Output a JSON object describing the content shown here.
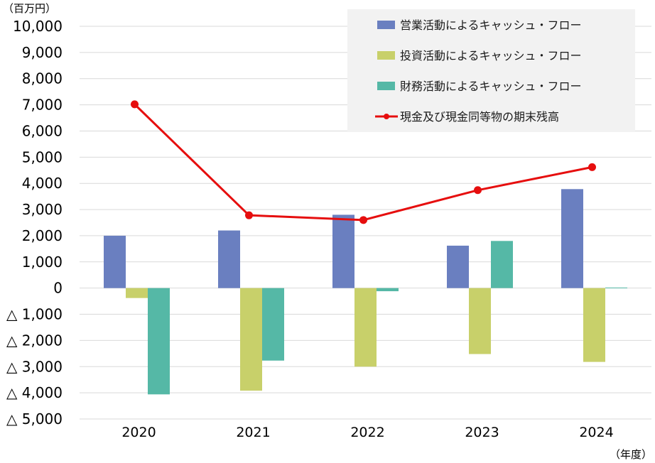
{
  "chart_data": {
    "type": "bar",
    "y_unit_label": "（百万円）",
    "x_unit_label": "（年度）",
    "categories": [
      "2020",
      "2021",
      "2022",
      "2023",
      "2024"
    ],
    "ylim": [
      -5000,
      10000
    ],
    "yticks": [
      {
        "value": 10000,
        "label": "10,000"
      },
      {
        "value": 9000,
        "label": "9,000"
      },
      {
        "value": 8000,
        "label": "8,000"
      },
      {
        "value": 7000,
        "label": "7,000"
      },
      {
        "value": 6000,
        "label": "6,000"
      },
      {
        "value": 5000,
        "label": "5,000"
      },
      {
        "value": 4000,
        "label": "4,000"
      },
      {
        "value": 3000,
        "label": "3,000"
      },
      {
        "value": 2000,
        "label": "2,000"
      },
      {
        "value": 1000,
        "label": "1,000"
      },
      {
        "value": 0,
        "label": "0"
      },
      {
        "value": -1000,
        "label": "△ 1,000"
      },
      {
        "value": -2000,
        "label": "△ 2,000"
      },
      {
        "value": -3000,
        "label": "△ 3,000"
      },
      {
        "value": -4000,
        "label": "△ 4,000"
      },
      {
        "value": -5000,
        "label": "△ 5,000"
      }
    ],
    "grid": true,
    "legend_position": "top-right",
    "series": [
      {
        "name": "営業活動によるキャッシュ・フロー",
        "kind": "bar",
        "color": "#6a7fc0",
        "values": [
          2000,
          2200,
          2800,
          1620,
          3780
        ]
      },
      {
        "name": "投資活動によるキャッシュ・フロー",
        "kind": "bar",
        "color": "#c8d06a",
        "values": [
          -380,
          -3920,
          -3000,
          -2520,
          -2820
        ]
      },
      {
        "name": "財務活動によるキャッシュ・フロー",
        "kind": "bar",
        "color": "#55b8a6",
        "values": [
          -4060,
          -2770,
          -120,
          1800,
          20
        ]
      },
      {
        "name": "現金及び現金同等物の期末残高",
        "kind": "line",
        "color": "#e60e0e",
        "values": [
          7020,
          2780,
          2600,
          3740,
          4620
        ]
      }
    ]
  }
}
